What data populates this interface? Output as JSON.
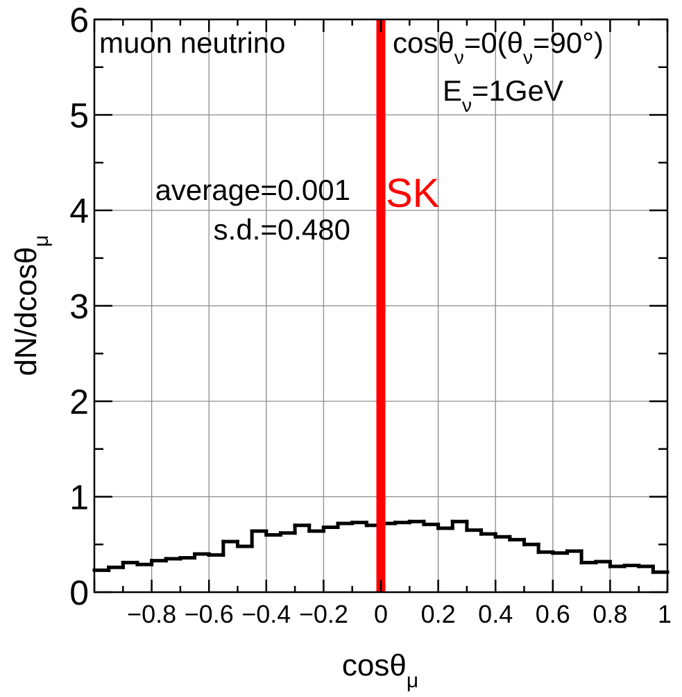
{
  "chart_data": {
    "type": "histogram",
    "xlabel_main": "cosθ",
    "xlabel_sub": "μ",
    "ylabel_main": "dN/dcosθ",
    "ylabel_sub": "μ",
    "xlim": [
      -1,
      1
    ],
    "ylim": [
      0,
      6
    ],
    "grid": true,
    "x_ticks": [
      -0.8,
      -0.6,
      -0.4,
      -0.2,
      0,
      0.2,
      0.4,
      0.6,
      0.8,
      1
    ],
    "x_tick_labels": [
      "−0.8",
      "−0.6",
      "−0.4",
      "−0.2",
      "0",
      "0.2",
      "0.4",
      "0.6",
      "0.8",
      "1"
    ],
    "y_ticks": [
      0,
      1,
      2,
      3,
      4,
      5,
      6
    ],
    "y_tick_labels": [
      "0",
      "1",
      "2",
      "3",
      "4",
      "5",
      "6"
    ],
    "bin_edges_start": -1,
    "bin_width": 0.05,
    "values": [
      0.23,
      0.26,
      0.31,
      0.29,
      0.33,
      0.35,
      0.36,
      0.4,
      0.39,
      0.53,
      0.48,
      0.64,
      0.6,
      0.62,
      0.7,
      0.64,
      0.68,
      0.72,
      0.73,
      0.7,
      0.72,
      0.73,
      0.74,
      0.71,
      0.67,
      0.74,
      0.65,
      0.61,
      0.58,
      0.55,
      0.5,
      0.42,
      0.41,
      0.43,
      0.31,
      0.32,
      0.27,
      0.28,
      0.27,
      0.21
    ],
    "series_color": "#000000",
    "marker_line": {
      "x": 0,
      "color": "#ff0000",
      "label": "SK"
    },
    "annotations": {
      "top_left": "muon neutrino",
      "cos_prefix": "cosθ",
      "cos_sub": "ν",
      "cos_mid": "=0(θ",
      "cos_sub2": "ν",
      "cos_suffix": "=90°)",
      "energy_prefix": "E",
      "energy_sub": "ν",
      "energy_suffix": "=1GeV",
      "average": "average=0.001",
      "sd": "s.d.=0.480"
    }
  }
}
